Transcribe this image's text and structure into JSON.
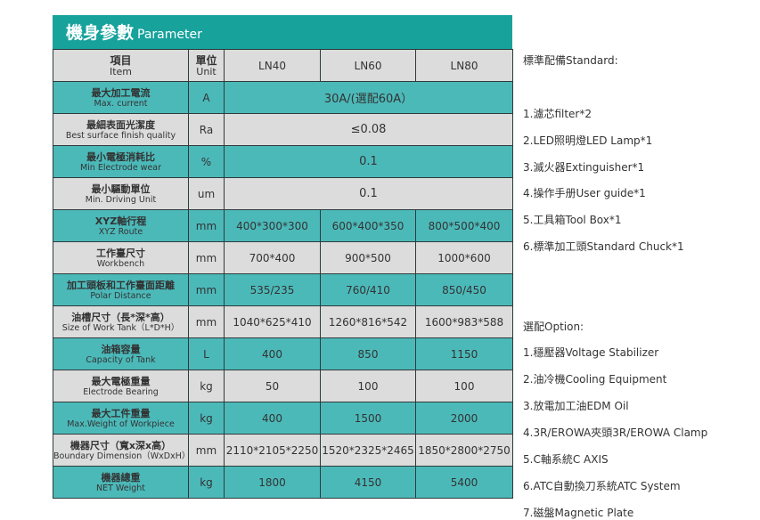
{
  "title": {
    "zh": "機身參數",
    "en": "Parameter"
  },
  "colors": {
    "title_bar": "#17a29c",
    "teal_row": "#4cb9b9",
    "gray_row": "#dcdcdc"
  },
  "header": {
    "item_zh": "項目",
    "item_en": "Item",
    "unit_zh": "單位",
    "unit_en": "Unit",
    "models": [
      "LN40",
      "LN60",
      "LN80"
    ]
  },
  "rows": [
    {
      "zh": "最大加工電流",
      "en": "Max. current",
      "unit": "A",
      "values": [
        "30A/(選配60A）"
      ]
    },
    {
      "zh": "最細表面光潔度",
      "en": "Best surface finish quality",
      "unit": "Ra",
      "values": [
        "≤0.08"
      ]
    },
    {
      "zh": "最小電極消耗比",
      "en": "Min Electrode wear",
      "unit": "%",
      "values": [
        "0.1"
      ]
    },
    {
      "zh": "最小驅動單位",
      "en": "Min. Driving Unit",
      "unit": "um",
      "values": [
        "0.1"
      ]
    },
    {
      "zh": "XYZ軸行程",
      "en": "XYZ Route",
      "unit": "mm",
      "values": [
        "400*300*300",
        "600*400*350",
        "800*500*400"
      ]
    },
    {
      "zh": "工作臺尺寸",
      "en": "Workbench",
      "unit": "mm",
      "values": [
        "700*400",
        "900*500",
        "1000*600"
      ]
    },
    {
      "zh": "加工頭板和工作臺面距離",
      "en": "Polar Distance",
      "unit": "mm",
      "values": [
        "535/235",
        "760/410",
        "850/450"
      ]
    },
    {
      "zh": "油槽尺寸（長*深*高）",
      "en": "Size of Work Tank（L*D*H）",
      "unit": "mm",
      "values": [
        "1040*625*410",
        "1260*816*542",
        "1600*983*588"
      ]
    },
    {
      "zh": "油箱容量",
      "en": "Capacity of Tank",
      "unit": "L",
      "values": [
        "400",
        "850",
        "1150"
      ]
    },
    {
      "zh": "最大電極重量",
      "en": "Electrode Bearing",
      "unit": "kg",
      "values": [
        "50",
        "100",
        "100"
      ]
    },
    {
      "zh": "最大工件重量",
      "en": "Max.Weight of Workpiece",
      "unit": "kg",
      "values": [
        "400",
        "1500",
        "2000"
      ]
    },
    {
      "zh": "機器尺寸（寬x深x高）",
      "en": "Boundary Dimension（WxDxH）",
      "unit": "mm",
      "values": [
        "2110*2105*2250",
        "1520*2325*2465",
        "1850*2800*2750"
      ]
    },
    {
      "zh": "機器總重",
      "en": "NET Weight",
      "unit": "kg",
      "values": [
        "1800",
        "4150",
        "5400"
      ]
    }
  ],
  "standard": {
    "heading": "標準配備Standard:",
    "items": [
      "1.濾芯filter*2",
      "2.LED照明燈LED Lamp*1",
      "3.滅火器Extinguisher*1",
      "4.操作手册User guide*1",
      "5.工具箱Tool Box*1",
      "6.標準加工頭Standard  Chuck*1"
    ]
  },
  "option": {
    "heading": "選配Option:",
    "items": [
      "1.穩壓器Voltage Stabilizer",
      "2.油冷機Cooling Equipment",
      "3.放電加工油EDM Oil",
      "4.3R/EROWA夾頭3R/EROWA Clamp",
      "5.C軸系統C AXIS",
      "6.ATC自動換刀系統ATC System",
      "7.磁盤Magnetic Plate"
    ]
  }
}
